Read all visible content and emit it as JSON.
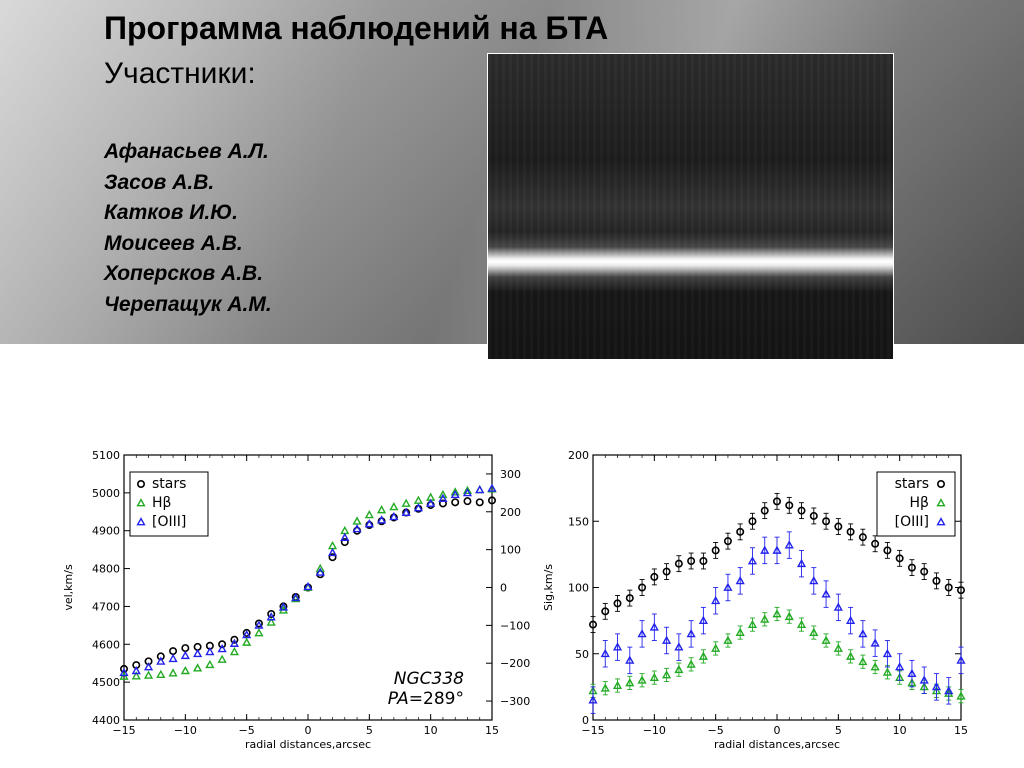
{
  "header": {
    "title": "Программа наблюдений на БТА",
    "subtitle": "Участники:",
    "participants": [
      "Афанасьев А.Л.",
      "Засов А.В.",
      "Катков И.Ю.",
      "Моисеев А.В.",
      "Хоперсков А.В.",
      "Черепащук А.М."
    ]
  },
  "colors": {
    "stars": "#000000",
    "hbeta": "#22aa22",
    "oiii": "#2222ee"
  },
  "chart_data": [
    {
      "type": "scatter",
      "xlabel": "radial distances,arcsec",
      "ylabel": "vel,km/s",
      "xlim": [
        -15,
        15
      ],
      "ylim": [
        4400,
        5100
      ],
      "y2lim": [
        -350,
        350
      ],
      "xticks": [
        "−15",
        "−10",
        "−5",
        "0",
        "5",
        "10",
        "15"
      ],
      "yticks": [
        "4400",
        "4500",
        "4600",
        "4700",
        "4800",
        "4900",
        "5000",
        "5100"
      ],
      "y2ticks": [
        "−300",
        "−200",
        "−100",
        "0",
        "100",
        "200",
        "300"
      ],
      "legend": {
        "placement": "top-left",
        "entries": [
          "stars",
          "Hβ",
          "[OIII]"
        ]
      },
      "annotation": {
        "object": "NGC338",
        "pa_label": "PA",
        "pa_value": "=289°"
      },
      "reference_lines": {
        "x": 0,
        "y": 4750,
        "style": "dotted"
      },
      "series": [
        {
          "name": "stars",
          "marker": "circle",
          "color": "#000000",
          "x": [
            -15,
            -14,
            -13,
            -12,
            -11,
            -10,
            -9,
            -8,
            -7,
            -6,
            -5,
            -4,
            -3,
            -2,
            -1,
            0,
            1,
            2,
            3,
            4,
            5,
            6,
            7,
            8,
            9,
            10,
            11,
            12,
            13,
            14,
            15
          ],
          "y": [
            4535,
            4545,
            4555,
            4568,
            4582,
            4590,
            4593,
            4596,
            4600,
            4612,
            4630,
            4655,
            4680,
            4700,
            4725,
            4750,
            4785,
            4830,
            4870,
            4900,
            4915,
            4925,
            4935,
            4948,
            4958,
            4968,
            4972,
            4975,
            4978,
            4975,
            4980
          ]
        },
        {
          "name": "Hβ",
          "marker": "triangle",
          "color": "#22aa22",
          "x": [
            -15,
            -14,
            -13,
            -12,
            -11,
            -10,
            -9,
            -8,
            -7,
            -6,
            -5,
            -4,
            -3,
            -2,
            -1,
            0,
            1,
            2,
            3,
            4,
            5,
            6,
            7,
            8,
            9,
            10,
            11,
            12,
            13,
            14,
            15
          ],
          "y": [
            4515,
            4516,
            4518,
            4520,
            4524,
            4530,
            4537,
            4546,
            4560,
            4580,
            4605,
            4630,
            4658,
            4690,
            4720,
            4750,
            4800,
            4860,
            4900,
            4925,
            4942,
            4955,
            4963,
            4972,
            4980,
            4988,
            4995,
            5002,
            5006,
            5008,
            5010
          ]
        },
        {
          "name": "[OIII]",
          "marker": "triangle",
          "color": "#2222ee",
          "x": [
            -15,
            -14,
            -13,
            -12,
            -11,
            -10,
            -9,
            -8,
            -7,
            -6,
            -5,
            -4,
            -3,
            -2,
            -1,
            0,
            1,
            2,
            3,
            4,
            5,
            6,
            7,
            8,
            9,
            10,
            11,
            12,
            13,
            14,
            15
          ],
          "y": [
            4525,
            4530,
            4540,
            4555,
            4562,
            4570,
            4575,
            4580,
            4588,
            4602,
            4625,
            4650,
            4672,
            4698,
            4723,
            4752,
            4790,
            4842,
            4882,
            4905,
            4918,
            4928,
            4937,
            4948,
            4960,
            4972,
            4985,
            4995,
            5000,
            5008,
            5012
          ]
        }
      ]
    },
    {
      "type": "scatter",
      "xlabel": "radial distances,arcsec",
      "ylabel": "Sig,km/s",
      "xlim": [
        -15,
        15
      ],
      "ylim": [
        0,
        200
      ],
      "xticks": [
        "−15",
        "−10",
        "−5",
        "0",
        "5",
        "10",
        "15"
      ],
      "yticks": [
        "0",
        "50",
        "100",
        "150",
        "200"
      ],
      "legend": {
        "placement": "top-right",
        "entries": [
          "stars",
          "Hβ",
          "[OIII]"
        ]
      },
      "reference_lines": {
        "x": 0,
        "style": "dotted"
      },
      "series": [
        {
          "name": "stars",
          "marker": "circle",
          "color": "#000000",
          "error": 6,
          "x": [
            -15,
            -14,
            -13,
            -12,
            -11,
            -10,
            -9,
            -8,
            -7,
            -6,
            -5,
            -4,
            -3,
            -2,
            -1,
            0,
            1,
            2,
            3,
            4,
            5,
            6,
            7,
            8,
            9,
            10,
            11,
            12,
            13,
            14,
            15
          ],
          "y": [
            72,
            82,
            88,
            92,
            100,
            108,
            112,
            118,
            120,
            120,
            128,
            135,
            142,
            150,
            158,
            165,
            162,
            158,
            154,
            150,
            146,
            142,
            138,
            133,
            128,
            122,
            115,
            112,
            105,
            100,
            98
          ]
        },
        {
          "name": "Hβ",
          "marker": "triangle",
          "color": "#22aa22",
          "error": 5,
          "x": [
            -15,
            -14,
            -13,
            -12,
            -11,
            -10,
            -9,
            -8,
            -7,
            -6,
            -5,
            -4,
            -3,
            -2,
            -1,
            0,
            1,
            2,
            3,
            4,
            5,
            6,
            7,
            8,
            9,
            10,
            11,
            12,
            13,
            14,
            15
          ],
          "y": [
            22,
            24,
            26,
            28,
            30,
            32,
            34,
            38,
            42,
            48,
            54,
            60,
            66,
            72,
            76,
            80,
            78,
            72,
            66,
            60,
            54,
            48,
            44,
            40,
            36,
            32,
            28,
            25,
            22,
            20,
            18
          ]
        },
        {
          "name": "[OIII]",
          "marker": "triangle",
          "color": "#2222ee",
          "error": 10,
          "x": [
            -15,
            -14,
            -13,
            -12,
            -11,
            -10,
            -9,
            -8,
            -7,
            -6,
            -5,
            -4,
            -3,
            -2,
            -1,
            0,
            1,
            2,
            3,
            4,
            5,
            6,
            7,
            8,
            9,
            10,
            11,
            12,
            13,
            14,
            15
          ],
          "y": [
            15,
            50,
            55,
            45,
            65,
            70,
            60,
            55,
            65,
            75,
            90,
            100,
            105,
            120,
            128,
            128,
            132,
            118,
            105,
            95,
            85,
            75,
            65,
            58,
            50,
            40,
            35,
            30,
            25,
            22,
            45
          ]
        }
      ]
    }
  ]
}
